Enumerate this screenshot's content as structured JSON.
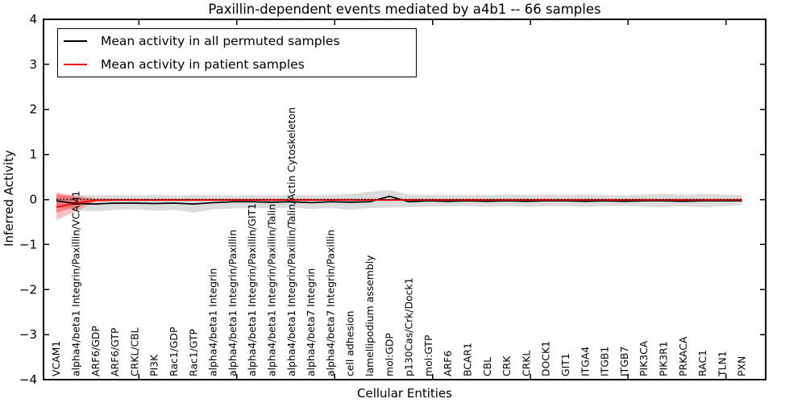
{
  "title": "Paxillin-dependent events mediated by a4b1 -- 66 samples",
  "xlabel": "Cellular Entities",
  "ylabel": "Inferred Activity",
  "legend": {
    "items": [
      {
        "label": "Mean activity in all permuted samples",
        "color": "#000000"
      },
      {
        "label": "Mean activity in patient samples",
        "color": "#ff0000"
      }
    ],
    "position": "upper left"
  },
  "chart_data": {
    "type": "line",
    "title": "Paxillin-dependent events mediated by a4b1 -- 66 samples",
    "xlabel": "Cellular Entities",
    "ylabel": "Inferred Activity",
    "ylim": [
      -4,
      4
    ],
    "yticks": [
      -4,
      -3,
      -2,
      -1,
      0,
      1,
      2,
      3,
      4
    ],
    "grid": false,
    "legend_position": "upper left",
    "categories": [
      "VCAM1",
      "alpha4/beta1 Integrin/Paxillin/VCAM1",
      "ARF6/GDP",
      "ARF6/GTP",
      "CRKL/CBL",
      "PI3K",
      "Rac1/GDP",
      "Rac1/GTP",
      "alpha4/beta1 Integrin",
      "alpha4/beta1 Integrin/Paxillin",
      "alpha4/beta1 Integrin/Paxillin/GIT1",
      "alpha4/beta1 Integrin/Paxillin/Talin",
      "alpha4/beta1 Integrin/Paxillin/Talin/Actin Cytoskeleton",
      "alpha4/beta7 Integrin",
      "alpha4/beta7 Integrin/Paxillin",
      "cell adhesion",
      "lamellipodium assembly",
      "mol:GDP",
      "p130Cas/Crk/Dock1",
      "mol:GTP",
      "ARF6",
      "BCAR1",
      "CBL",
      "CRK",
      "CRKL",
      "DOCK1",
      "GIT1",
      "ITGA4",
      "ITGB1",
      "ITGB7",
      "PIK3CA",
      "PIK3R1",
      "PRKACA",
      "RAC1",
      "TLN1",
      "PXN"
    ],
    "series": [
      {
        "name": "Mean activity in all permuted samples",
        "color": "#000000",
        "values": [
          -0.03,
          -0.09,
          -0.1,
          -0.08,
          -0.08,
          -0.09,
          -0.08,
          -0.1,
          -0.07,
          -0.05,
          -0.05,
          -0.06,
          -0.05,
          -0.07,
          -0.05,
          -0.06,
          -0.05,
          0.07,
          -0.05,
          -0.03,
          -0.04,
          -0.03,
          -0.04,
          -0.03,
          -0.04,
          -0.03,
          -0.03,
          -0.04,
          -0.03,
          -0.04,
          -0.03,
          -0.03,
          -0.04,
          -0.03,
          -0.03,
          -0.03
        ]
      },
      {
        "name": "Mean activity in patient samples",
        "color": "#ff0000",
        "values": [
          -0.17,
          -0.08,
          -0.02,
          -0.01,
          -0.01,
          -0.01,
          -0.01,
          -0.01,
          -0.01,
          -0.01,
          -0.01,
          -0.01,
          -0.01,
          -0.01,
          -0.01,
          -0.01,
          -0.01,
          -0.01,
          -0.01,
          -0.01,
          -0.01,
          -0.01,
          -0.01,
          -0.01,
          -0.01,
          -0.01,
          -0.01,
          -0.01,
          -0.01,
          -0.01,
          -0.01,
          -0.01,
          -0.01,
          -0.01,
          -0.01,
          -0.01
        ]
      }
    ],
    "bands": [
      {
        "name": "permuted-samples-range",
        "color": "rgba(0,0,0,0.14)",
        "upper": [
          0.08,
          0.1,
          0.09,
          0.1,
          0.09,
          0.1,
          0.09,
          0.1,
          0.1,
          0.09,
          0.1,
          0.09,
          0.1,
          0.09,
          0.1,
          0.12,
          0.17,
          0.21,
          0.11,
          0.1,
          0.1,
          0.1,
          0.1,
          0.11,
          0.1,
          0.11,
          0.1,
          0.11,
          0.1,
          0.09,
          0.11,
          0.13,
          0.1,
          0.12,
          0.11,
          0.1
        ],
        "lower": [
          -0.15,
          -0.24,
          -0.26,
          -0.23,
          -0.22,
          -0.25,
          -0.23,
          -0.29,
          -0.22,
          -0.2,
          -0.19,
          -0.2,
          -0.18,
          -0.21,
          -0.19,
          -0.23,
          -0.19,
          -0.18,
          -0.17,
          -0.16,
          -0.15,
          -0.15,
          -0.16,
          -0.15,
          -0.16,
          -0.15,
          -0.15,
          -0.16,
          -0.15,
          -0.14,
          -0.16,
          -0.17,
          -0.15,
          -0.17,
          -0.15,
          -0.13
        ]
      },
      {
        "name": "patient-samples-range-outer",
        "color": "rgba(255,0,0,0.24)",
        "upper": [
          0.16,
          0.08,
          0.02,
          0.015,
          0.015,
          0.015,
          0.015,
          0.015,
          0.015,
          0.015,
          0.015,
          0.015,
          0.015,
          0.015,
          0.015,
          0.015,
          0.015,
          0.015,
          0.015,
          0.015,
          0.015,
          0.015,
          0.015,
          0.015,
          0.015,
          0.015,
          0.015,
          0.015,
          0.015,
          0.015,
          0.015,
          0.015,
          0.015,
          0.015,
          0.015,
          0.015
        ],
        "lower": [
          -0.46,
          -0.26,
          -0.05,
          -0.035,
          -0.035,
          -0.035,
          -0.035,
          -0.035,
          -0.035,
          -0.035,
          -0.035,
          -0.035,
          -0.035,
          -0.035,
          -0.035,
          -0.035,
          -0.035,
          -0.035,
          -0.035,
          -0.035,
          -0.035,
          -0.035,
          -0.035,
          -0.035,
          -0.035,
          -0.035,
          -0.035,
          -0.035,
          -0.035,
          -0.035,
          -0.035,
          -0.035,
          -0.035,
          -0.035,
          -0.035,
          -0.035
        ]
      },
      {
        "name": "patient-samples-range-inner",
        "color": "rgba(255,0,0,0.30)",
        "upper": [
          0.12,
          0.05,
          0.015,
          0.01,
          0.01,
          0.01,
          0.01,
          0.01,
          0.01,
          0.01,
          0.01,
          0.01,
          0.01,
          0.01,
          0.01,
          0.01,
          0.01,
          0.01,
          0.01,
          0.01,
          0.01,
          0.01,
          0.01,
          0.01,
          0.01,
          0.01,
          0.01,
          0.01,
          0.01,
          0.01,
          0.01,
          0.01,
          0.01,
          0.01,
          0.01,
          0.01
        ],
        "lower": [
          -0.29,
          -0.16,
          -0.04,
          -0.025,
          -0.025,
          -0.025,
          -0.025,
          -0.025,
          -0.025,
          -0.025,
          -0.025,
          -0.025,
          -0.025,
          -0.025,
          -0.025,
          -0.025,
          -0.025,
          -0.025,
          -0.025,
          -0.025,
          -0.025,
          -0.025,
          -0.025,
          -0.025,
          -0.025,
          -0.025,
          -0.025,
          -0.025,
          -0.025,
          -0.025,
          -0.025,
          -0.025,
          -0.025,
          -0.025,
          -0.025,
          -0.025
        ]
      }
    ],
    "zero_line": {
      "y": 0,
      "style": "dotted",
      "color": "#000000"
    }
  }
}
